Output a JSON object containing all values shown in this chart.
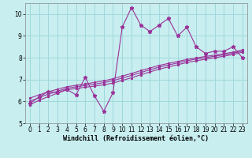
{
  "title": "",
  "xlabel": "Windchill (Refroidissement éolien,°C)",
  "ylabel": "",
  "bg_color": "#c8eef0",
  "grid_color": "#a0d8dc",
  "line_color": "#993399",
  "x": [
    0,
    1,
    2,
    3,
    4,
    5,
    6,
    7,
    8,
    9,
    10,
    11,
    12,
    13,
    14,
    15,
    16,
    17,
    18,
    19,
    20,
    21,
    22,
    23
  ],
  "y_jagged": [
    5.9,
    6.2,
    6.45,
    6.4,
    6.55,
    6.3,
    7.1,
    6.25,
    5.55,
    6.4,
    9.4,
    10.3,
    9.5,
    9.2,
    9.5,
    9.8,
    9.0,
    9.4,
    8.5,
    8.2,
    8.3,
    8.3,
    8.5,
    8.0
  ],
  "y_trend1": [
    5.85,
    6.05,
    6.22,
    6.38,
    6.53,
    6.59,
    6.65,
    6.7,
    6.76,
    6.84,
    6.96,
    7.08,
    7.22,
    7.35,
    7.48,
    7.58,
    7.68,
    7.78,
    7.86,
    7.93,
    8.0,
    8.07,
    8.15,
    8.25
  ],
  "y_trend2": [
    6.0,
    6.18,
    6.33,
    6.47,
    6.6,
    6.67,
    6.73,
    6.79,
    6.86,
    6.95,
    7.07,
    7.19,
    7.32,
    7.45,
    7.57,
    7.67,
    7.76,
    7.86,
    7.94,
    8.0,
    8.07,
    8.13,
    8.21,
    8.3
  ],
  "y_trend3": [
    6.15,
    6.3,
    6.44,
    6.56,
    6.67,
    6.74,
    6.8,
    6.87,
    6.94,
    7.04,
    7.16,
    7.28,
    7.41,
    7.53,
    7.65,
    7.74,
    7.83,
    7.92,
    7.99,
    8.06,
    8.12,
    8.18,
    8.26,
    8.36
  ],
  "ylim": [
    5,
    10.5
  ],
  "xlim": [
    -0.5,
    23.5
  ],
  "yticks": [
    5,
    6,
    7,
    8,
    9,
    10
  ],
  "xticks": [
    0,
    1,
    2,
    3,
    4,
    5,
    6,
    7,
    8,
    9,
    10,
    11,
    12,
    13,
    14,
    15,
    16,
    17,
    18,
    19,
    20,
    21,
    22,
    23
  ],
  "tick_fontsize": 5.5,
  "xlabel_fontsize": 6.0,
  "marker": "*",
  "markersize": 3.5
}
